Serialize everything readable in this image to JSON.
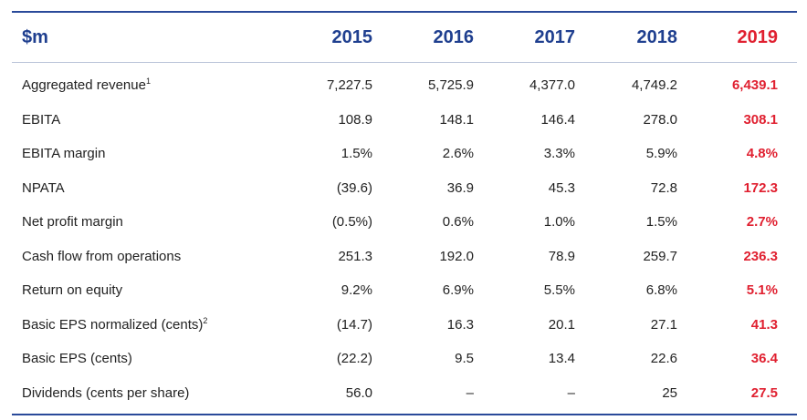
{
  "table": {
    "header": {
      "label": "$m",
      "years": [
        "2015",
        "2016",
        "2017",
        "2018",
        "2019"
      ]
    },
    "rows": [
      {
        "label": "Aggregated revenue",
        "footnote": "1",
        "values": [
          "7,227.5",
          "5,725.9",
          "4,377.0",
          "4,749.2",
          "6,439.1"
        ]
      },
      {
        "label": "EBITA",
        "footnote": "",
        "values": [
          "108.9",
          "148.1",
          "146.4",
          "278.0",
          "308.1"
        ]
      },
      {
        "label": "EBITA margin",
        "footnote": "",
        "values": [
          "1.5%",
          "2.6%",
          "3.3%",
          "5.9%",
          "4.8%"
        ]
      },
      {
        "label": "NPATA",
        "footnote": "",
        "values": [
          "(39.6)",
          "36.9",
          "45.3",
          "72.8",
          "172.3"
        ]
      },
      {
        "label": "Net profit margin",
        "footnote": "",
        "values": [
          "(0.5%)",
          "0.6%",
          "1.0%",
          "1.5%",
          "2.7%"
        ]
      },
      {
        "label": "Cash flow from operations",
        "footnote": "",
        "values": [
          "251.3",
          "192.0",
          "78.9",
          "259.7",
          "236.3"
        ]
      },
      {
        "label": "Return on equity",
        "footnote": "",
        "values": [
          "9.2%",
          "6.9%",
          "5.5%",
          "6.8%",
          "5.1%"
        ]
      },
      {
        "label": "Basic EPS normalized (cents)",
        "footnote": "2",
        "values": [
          "(14.7)",
          "16.3",
          "20.1",
          "27.1",
          "41.3"
        ]
      },
      {
        "label": "Basic EPS (cents)",
        "footnote": "",
        "values": [
          "(22.2)",
          "9.5",
          "13.4",
          "22.6",
          "36.4"
        ]
      },
      {
        "label": "Dividends (cents per share)",
        "footnote": "",
        "values": [
          "56.0",
          "–",
          "–",
          "25",
          "27.5"
        ]
      }
    ],
    "colors": {
      "header_text": "#1f3f8f",
      "highlight": "#e02030",
      "rule": "#2a4a9a"
    }
  }
}
